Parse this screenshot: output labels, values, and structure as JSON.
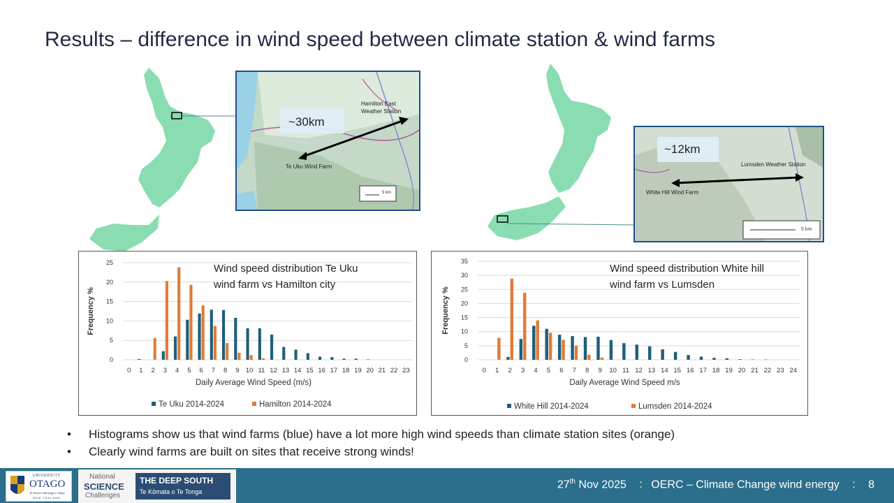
{
  "slide": {
    "title": "Results – difference in wind speed between climate station & wind farms",
    "bullets": [
      "Histograms show us that wind farms (blue) have a lot more high wind speeds than climate station sites (orange)",
      "Clearly wind farms are built on sites that receive strong winds!"
    ]
  },
  "map_left": {
    "distance": "~30km",
    "station_label_1": "Hamilton East",
    "station_label_2": "Weather Station",
    "farm_label": "Te Uku Wind Farm",
    "scale": "5 km"
  },
  "map_right": {
    "distance": "~12km",
    "station_label": "Lumsden Weather Station",
    "farm_label": "White Hill Wind Farm",
    "scale": "5 km"
  },
  "chart_annotations": {
    "left_line1": "Wind speed distribution Te Uku",
    "left_line2": "wind farm vs Hamilton city",
    "right_line1": "Wind speed distribution White hill",
    "right_line2": "wind farm vs Lumsden"
  },
  "chart_data": [
    {
      "type": "bar",
      "title": "Wind speed distribution Te Uku wind farm vs Hamilton city",
      "xlabel": "Daily Average Wind Speed (m/s)",
      "ylabel": "Frequency %",
      "ylim": [
        0,
        25
      ],
      "yticks": [
        0,
        5,
        10,
        15,
        20,
        25
      ],
      "categories": [
        "0",
        "1",
        "2",
        "3",
        "4",
        "5",
        "6",
        "7",
        "8",
        "9",
        "10",
        "11",
        "12",
        "13",
        "14",
        "15",
        "16",
        "17",
        "18",
        "19",
        "20",
        "21",
        "22",
        "23"
      ],
      "series": [
        {
          "name": "Te Uku 2014-2024",
          "color": "#1f5f7a",
          "values": [
            0,
            0.2,
            0,
            2.2,
            6,
            10.3,
            11.9,
            12.9,
            12.8,
            10.8,
            8.1,
            8.1,
            6.5,
            3.3,
            2.6,
            1.7,
            0.8,
            0.7,
            0.3,
            0.3,
            0.1,
            0,
            0,
            0
          ]
        },
        {
          "name": "Hamilton 2014-2024",
          "color": "#e07b39",
          "values": [
            0,
            0,
            5.6,
            20.3,
            23.8,
            19.3,
            14,
            8.7,
            4.3,
            1.8,
            1.2,
            0.4,
            0,
            0,
            0,
            0,
            0,
            0,
            0,
            0,
            0,
            0,
            0,
            0
          ]
        }
      ],
      "legend": "bottom",
      "grid": true
    },
    {
      "type": "bar",
      "title": "Wind speed distribution White hill wind farm vs Lumsden",
      "xlabel": "Daily Average Wind Speed m/s",
      "ylabel": "Frequency %",
      "ylim": [
        0,
        35
      ],
      "yticks": [
        0,
        5,
        10,
        15,
        20,
        25,
        30,
        35
      ],
      "categories": [
        "0",
        "1",
        "2",
        "3",
        "4",
        "5",
        "6",
        "7",
        "8",
        "9",
        "10",
        "11",
        "12",
        "13",
        "14",
        "15",
        "16",
        "17",
        "18",
        "19",
        "20",
        "21",
        "22",
        "23",
        "24"
      ],
      "series": [
        {
          "name": "White Hill 2014-2024",
          "color": "#1f5f7a",
          "values": [
            0,
            0,
            1,
            7.4,
            12.1,
            11,
            8.9,
            8.4,
            8.1,
            8.2,
            7,
            5.9,
            5.4,
            4.8,
            3.7,
            2.8,
            1.7,
            1.1,
            0.7,
            0.5,
            0.2,
            0.1,
            0.1,
            0,
            0
          ]
        },
        {
          "name": "Lumsden 2014-2024",
          "color": "#e07b39",
          "values": [
            0,
            7.8,
            28.8,
            23.8,
            14,
            9.6,
            7.1,
            5,
            1.8,
            0.8,
            0,
            0,
            0,
            0,
            0,
            0,
            0,
            0,
            0,
            0,
            0,
            0,
            0,
            0,
            0
          ]
        }
      ],
      "legend": "bottom",
      "grid": true
    }
  ],
  "footer": {
    "otago_line1": "UNIVERSITY",
    "otago_name": "OTAGO",
    "otago_tagline1": "Te Whare Wānanga o Otāgo",
    "otago_tagline2": "NEW ZEALAND",
    "nsc_national": "National",
    "nsc_science": "SCIENCE",
    "nsc_challenges": "Challenges",
    "nsc_deep_south": "THE DEEP SOUTH",
    "nsc_maori": "Te Kōmata o Te Tonga",
    "date_day": "27",
    "date_sup": "th",
    "date_rest": " Nov 2025",
    "sep": ":",
    "course": "OERC – Climate Change wind energy",
    "page": "8"
  },
  "colors": {
    "wind_farm": "#1f5f7a",
    "climate_station": "#e07b39",
    "footer_bg": "#2b6f8c",
    "title": "#1f2a44"
  }
}
